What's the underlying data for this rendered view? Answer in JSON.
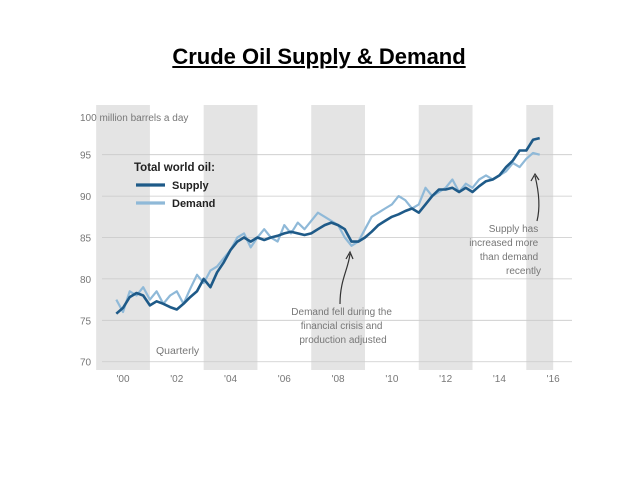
{
  "slide": {
    "title": "Crude Oil Supply & Demand"
  },
  "chart_data": {
    "type": "line",
    "ylabel": "100 million barrels a day",
    "ylim": [
      69,
      101
    ],
    "y_ticks": [
      70,
      75,
      80,
      85,
      90,
      95
    ],
    "x_ticks": [
      "'00",
      "'02",
      "'04",
      "'06",
      "'08",
      "'10",
      "'12",
      "'14",
      "'16"
    ],
    "legend": {
      "title": "Total world oil:",
      "position": "top-left"
    },
    "note": "Quarterly",
    "series": [
      {
        "name": "Supply",
        "color": "#1e5a88",
        "x": [
          1999.75,
          2000.0,
          2000.25,
          2000.5,
          2000.75,
          2001.0,
          2001.25,
          2001.5,
          2001.75,
          2002.0,
          2002.25,
          2002.5,
          2002.75,
          2003.0,
          2003.25,
          2003.5,
          2003.75,
          2004.0,
          2004.25,
          2004.5,
          2004.75,
          2005.0,
          2005.25,
          2005.5,
          2005.75,
          2006.0,
          2006.25,
          2006.5,
          2006.75,
          2007.0,
          2007.25,
          2007.5,
          2007.75,
          2008.0,
          2008.25,
          2008.5,
          2008.75,
          2009.0,
          2009.25,
          2009.5,
          2009.75,
          2010.0,
          2010.25,
          2010.5,
          2010.75,
          2011.0,
          2011.25,
          2011.5,
          2011.75,
          2012.0,
          2012.25,
          2012.5,
          2012.75,
          2013.0,
          2013.25,
          2013.5,
          2013.75,
          2014.0,
          2014.25,
          2014.5,
          2014.75,
          2015.0,
          2015.25,
          2015.5
        ],
        "values": [
          75.8,
          76.5,
          77.8,
          78.3,
          78.0,
          76.8,
          77.3,
          77.0,
          76.6,
          76.3,
          77.0,
          77.8,
          78.5,
          80.0,
          79.0,
          80.8,
          82.0,
          83.5,
          84.5,
          85.0,
          84.5,
          85.0,
          84.7,
          85.0,
          85.2,
          85.5,
          85.7,
          85.5,
          85.3,
          85.5,
          86.0,
          86.5,
          86.8,
          86.5,
          86.0,
          84.5,
          84.5,
          85.0,
          85.7,
          86.5,
          87.0,
          87.5,
          87.8,
          88.2,
          88.5,
          88.0,
          89.0,
          90.0,
          90.8,
          90.8,
          91.0,
          90.5,
          91.0,
          90.5,
          91.2,
          91.8,
          92.0,
          92.5,
          93.5,
          94.3,
          95.5,
          95.5,
          96.8,
          97.0
        ]
      },
      {
        "name": "Demand",
        "color": "#8fb9d8",
        "x": [
          1999.75,
          2000.0,
          2000.25,
          2000.5,
          2000.75,
          2001.0,
          2001.25,
          2001.5,
          2001.75,
          2002.0,
          2002.25,
          2002.5,
          2002.75,
          2003.0,
          2003.25,
          2003.5,
          2003.75,
          2004.0,
          2004.25,
          2004.5,
          2004.75,
          2005.0,
          2005.25,
          2005.5,
          2005.75,
          2006.0,
          2006.25,
          2006.5,
          2006.75,
          2007.0,
          2007.25,
          2007.5,
          2007.75,
          2008.0,
          2008.25,
          2008.5,
          2008.75,
          2009.0,
          2009.25,
          2009.5,
          2009.75,
          2010.0,
          2010.25,
          2010.5,
          2010.75,
          2011.0,
          2011.25,
          2011.5,
          2011.75,
          2012.0,
          2012.25,
          2012.5,
          2012.75,
          2013.0,
          2013.25,
          2013.5,
          2013.75,
          2014.0,
          2014.25,
          2014.5,
          2014.75,
          2015.0,
          2015.25,
          2015.5
        ],
        "values": [
          77.5,
          76.0,
          78.5,
          78.0,
          79.0,
          77.5,
          78.5,
          77.0,
          78.0,
          78.5,
          77.0,
          78.8,
          80.5,
          79.5,
          81.0,
          81.5,
          82.5,
          83.5,
          85.0,
          85.5,
          83.8,
          85.0,
          86.0,
          85.0,
          84.5,
          86.5,
          85.5,
          86.8,
          86.0,
          87.0,
          88.0,
          87.5,
          87.0,
          86.5,
          85.0,
          84.0,
          84.5,
          86.0,
          87.5,
          88.0,
          88.5,
          89.0,
          90.0,
          89.5,
          88.5,
          89.0,
          91.0,
          90.0,
          90.5,
          91.0,
          92.0,
          90.5,
          91.5,
          91.0,
          92.0,
          92.5,
          92.0,
          92.5,
          93.0,
          94.0,
          93.5,
          94.5,
          95.2,
          95.0
        ]
      }
    ],
    "annotations": [
      "Demand fell during the financial crisis and production adjusted",
      "Supply has increased more than demand recently"
    ]
  }
}
